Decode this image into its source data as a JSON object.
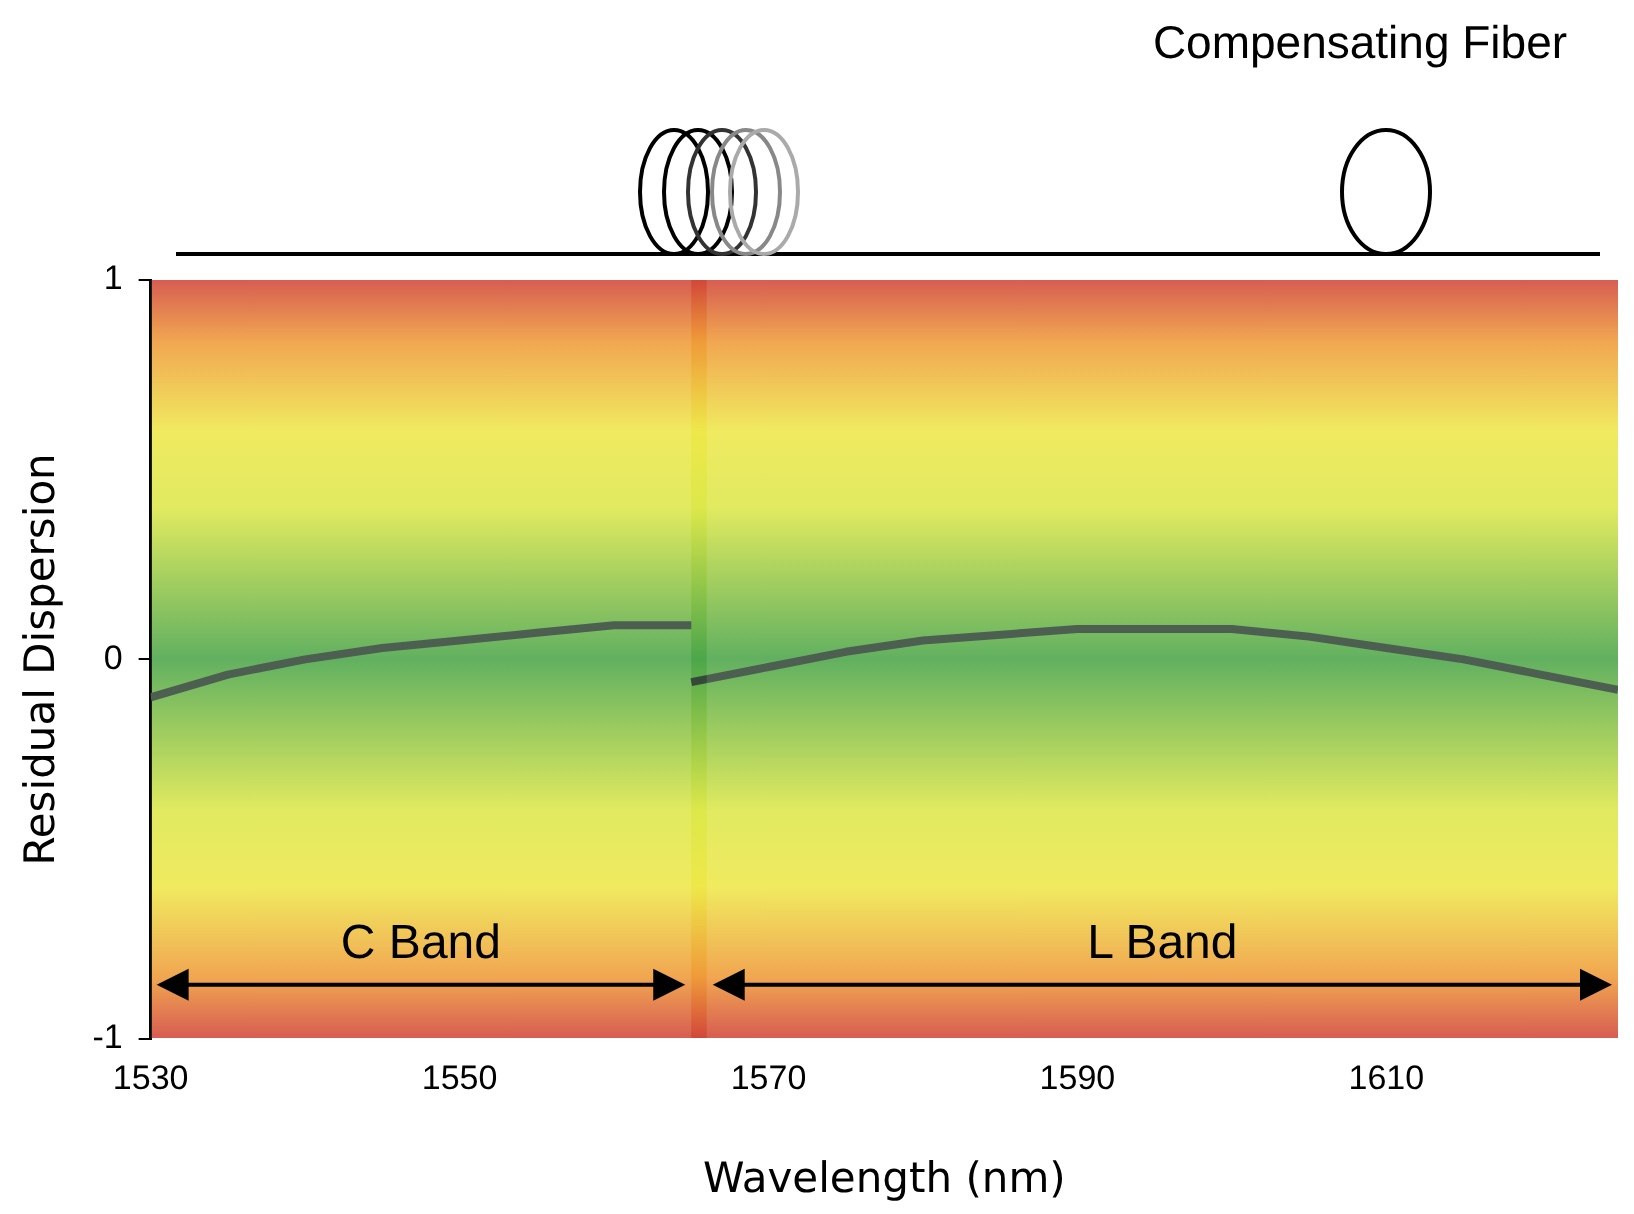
{
  "chart_data": {
    "type": "line",
    "xlabel": "Wavelength (nm)",
    "ylabel": "Residual Dispersion",
    "annotations": [
      "Compensating Fiber"
    ],
    "series": [
      {
        "color": "#34493a",
        "x": [
          1530,
          1535,
          1540,
          1545,
          1550,
          1555,
          1560,
          1565
        ],
        "values": [
          -0.1,
          -0.04,
          0.0,
          0.03,
          0.05,
          0.07,
          0.09,
          0.09
        ]
      },
      {
        "color": "#34493a",
        "x": [
          1565,
          1570,
          1575,
          1580,
          1590,
          1600,
          1605,
          1610,
          1615,
          1620,
          1625
        ],
        "values": [
          -0.06,
          -0.02,
          0.02,
          0.05,
          0.08,
          0.08,
          0.06,
          0.03,
          0.0,
          -0.04,
          -0.08
        ]
      }
    ],
    "bands": [
      {
        "axis": "x",
        "from": 1530,
        "to": 1565,
        "label": "C Band"
      },
      {
        "axis": "x",
        "from": 1566,
        "to": 1625,
        "label": "L Band"
      }
    ],
    "xlim": [
      1530,
      1625
    ],
    "xticks": [
      1530,
      1550,
      1570,
      1590,
      1610
    ],
    "ylim": [
      -1,
      1
    ],
    "yticks": [
      -1,
      0,
      1
    ],
    "grid": false,
    "legend": false,
    "marker": "none",
    "line_style": "solid"
  }
}
